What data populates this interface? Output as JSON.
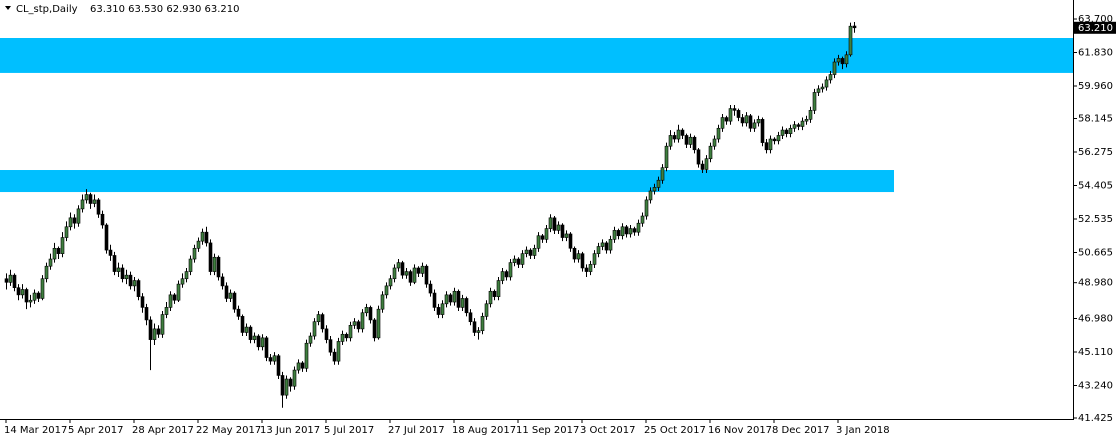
{
  "chart_data": {
    "type": "candlestick",
    "header": {
      "symbol": "CL_stp,Daily",
      "ohlc_text": "63.310 63.530 62.930 63.210"
    },
    "ylim": [
      41.425,
      64.65
    ],
    "yticks": [
      {
        "value": 63.7,
        "label": "63.700"
      },
      {
        "value": 61.83,
        "label": "61.830"
      },
      {
        "value": 59.96,
        "label": "59.960"
      },
      {
        "value": 58.145,
        "label": "58.145"
      },
      {
        "value": 56.275,
        "label": "56.275"
      },
      {
        "value": 54.405,
        "label": "54.405"
      },
      {
        "value": 52.535,
        "label": "52.535"
      },
      {
        "value": 50.665,
        "label": "50.665"
      },
      {
        "value": 48.98,
        "label": "48.980"
      },
      {
        "value": 46.98,
        "label": "46.980"
      },
      {
        "value": 45.11,
        "label": "45.110"
      },
      {
        "value": 43.24,
        "label": "43.240"
      },
      {
        "value": 41.425,
        "label": "41.425"
      }
    ],
    "x_labels": [
      "14 Mar 2017",
      "5 Apr 2017",
      "28 Apr 2017",
      "22 May 2017",
      "13 Jun 2017",
      "5 Jul 2017",
      "27 Jul 2017",
      "18 Aug 2017",
      "11 Sep 2017",
      "3 Oct 2017",
      "25 Oct 2017",
      "16 Nov 2017",
      "8 Dec 2017",
      "3 Jan 2018"
    ],
    "last_price": {
      "value": 63.21,
      "label": "63.210"
    },
    "up_color": "#3f7f3f",
    "down_color": "#000000",
    "zone_color": "#00bfff",
    "zones": [
      {
        "low": 60.69,
        "high": 62.64
      },
      {
        "low": 54.04,
        "high": 55.27,
        "x_end_index": 222
      }
    ],
    "candles": [
      [
        49.2,
        49.5,
        48.6,
        49.0
      ],
      [
        49.0,
        49.7,
        48.8,
        49.4
      ],
      [
        49.4,
        49.5,
        48.5,
        48.7
      ],
      [
        48.7,
        48.9,
        48.0,
        48.3
      ],
      [
        48.3,
        48.9,
        48.1,
        48.6
      ],
      [
        48.6,
        48.7,
        47.5,
        47.9
      ],
      [
        47.9,
        48.3,
        47.6,
        48.0
      ],
      [
        48.0,
        48.6,
        47.8,
        48.4
      ],
      [
        48.4,
        48.5,
        47.9,
        48.1
      ],
      [
        48.1,
        49.4,
        48.0,
        49.2
      ],
      [
        49.2,
        50.1,
        49.0,
        49.9
      ],
      [
        49.9,
        50.6,
        49.7,
        50.3
      ],
      [
        50.3,
        51.2,
        50.1,
        50.9
      ],
      [
        50.9,
        51.0,
        50.3,
        50.6
      ],
      [
        50.6,
        51.8,
        50.4,
        51.5
      ],
      [
        51.5,
        52.4,
        51.3,
        52.1
      ],
      [
        52.1,
        52.9,
        51.9,
        52.6
      ],
      [
        52.6,
        52.8,
        52.0,
        52.3
      ],
      [
        52.3,
        53.3,
        52.1,
        53.1
      ],
      [
        53.1,
        53.9,
        52.9,
        53.6
      ],
      [
        53.6,
        54.2,
        53.4,
        53.9
      ],
      [
        53.9,
        54.0,
        53.1,
        53.4
      ],
      [
        53.4,
        53.9,
        53.2,
        53.6
      ],
      [
        53.6,
        53.7,
        52.6,
        52.8
      ],
      [
        52.8,
        53.0,
        52.0,
        52.2
      ],
      [
        52.2,
        52.3,
        50.6,
        50.8
      ],
      [
        50.8,
        51.1,
        50.2,
        50.5
      ],
      [
        50.5,
        50.7,
        49.4,
        49.6
      ],
      [
        49.6,
        50.1,
        49.3,
        49.8
      ],
      [
        49.8,
        50.0,
        49.0,
        49.2
      ],
      [
        49.2,
        49.7,
        48.9,
        49.4
      ],
      [
        49.4,
        49.6,
        48.6,
        48.8
      ],
      [
        48.8,
        49.3,
        48.5,
        49.1
      ],
      [
        49.1,
        49.2,
        48.0,
        48.2
      ],
      [
        48.2,
        48.4,
        47.3,
        47.6
      ],
      [
        47.6,
        47.8,
        46.6,
        46.9
      ],
      [
        46.9,
        47.1,
        44.1,
        45.8
      ],
      [
        45.8,
        46.7,
        45.5,
        46.4
      ],
      [
        46.4,
        46.6,
        45.9,
        46.1
      ],
      [
        46.1,
        47.4,
        45.9,
        47.2
      ],
      [
        47.2,
        47.9,
        47.0,
        47.6
      ],
      [
        47.6,
        48.5,
        47.4,
        48.3
      ],
      [
        48.3,
        48.4,
        47.8,
        48.0
      ],
      [
        48.0,
        49.1,
        47.9,
        48.9
      ],
      [
        48.9,
        49.5,
        48.7,
        49.2
      ],
      [
        49.2,
        49.8,
        49.0,
        49.6
      ],
      [
        49.6,
        50.5,
        49.4,
        50.3
      ],
      [
        50.3,
        51.1,
        50.1,
        50.9
      ],
      [
        50.9,
        51.5,
        50.7,
        51.3
      ],
      [
        51.3,
        52.0,
        51.1,
        51.8
      ],
      [
        51.8,
        52.1,
        51.0,
        51.2
      ],
      [
        51.2,
        51.4,
        49.4,
        49.6
      ],
      [
        49.6,
        50.6,
        49.4,
        50.4
      ],
      [
        50.4,
        50.5,
        49.1,
        49.3
      ],
      [
        49.3,
        49.5,
        48.6,
        48.8
      ],
      [
        48.8,
        49.0,
        47.9,
        48.1
      ],
      [
        48.1,
        48.6,
        47.9,
        48.4
      ],
      [
        48.4,
        48.5,
        47.3,
        47.5
      ],
      [
        47.5,
        47.7,
        46.9,
        47.1
      ],
      [
        47.1,
        47.2,
        46.0,
        46.2
      ],
      [
        46.2,
        46.7,
        46.0,
        46.5
      ],
      [
        46.5,
        46.6,
        45.6,
        45.8
      ],
      [
        45.8,
        46.2,
        45.6,
        46.0
      ],
      [
        46.0,
        46.1,
        45.2,
        45.4
      ],
      [
        45.4,
        46.1,
        45.2,
        45.9
      ],
      [
        45.9,
        46.0,
        44.6,
        44.8
      ],
      [
        44.8,
        45.0,
        44.4,
        44.6
      ],
      [
        44.6,
        45.1,
        44.4,
        44.9
      ],
      [
        44.9,
        45.0,
        43.6,
        43.8
      ],
      [
        43.8,
        44.0,
        42.0,
        42.7
      ],
      [
        42.7,
        43.8,
        42.5,
        43.6
      ],
      [
        43.6,
        43.7,
        42.9,
        43.2
      ],
      [
        43.2,
        44.3,
        43.0,
        44.1
      ],
      [
        44.1,
        44.7,
        43.9,
        44.5
      ],
      [
        44.5,
        44.6,
        44.0,
        44.2
      ],
      [
        44.2,
        45.8,
        44.0,
        45.6
      ],
      [
        45.6,
        46.2,
        45.4,
        46.0
      ],
      [
        46.0,
        47.0,
        45.8,
        46.8
      ],
      [
        46.8,
        47.4,
        46.6,
        47.2
      ],
      [
        47.2,
        47.3,
        46.2,
        46.4
      ],
      [
        46.4,
        46.6,
        45.6,
        45.8
      ],
      [
        45.8,
        46.0,
        44.9,
        45.1
      ],
      [
        45.1,
        45.3,
        44.4,
        44.6
      ],
      [
        44.6,
        45.9,
        44.4,
        45.7
      ],
      [
        45.7,
        46.3,
        45.5,
        46.1
      ],
      [
        46.1,
        46.2,
        45.7,
        45.9
      ],
      [
        45.9,
        46.8,
        45.7,
        46.6
      ],
      [
        46.6,
        47.0,
        46.4,
        46.8
      ],
      [
        46.8,
        46.9,
        46.2,
        46.4
      ],
      [
        46.4,
        47.5,
        46.2,
        47.3
      ],
      [
        47.3,
        47.8,
        47.1,
        47.6
      ],
      [
        47.6,
        47.7,
        46.7,
        46.9
      ],
      [
        46.9,
        47.0,
        45.7,
        45.9
      ],
      [
        45.9,
        47.7,
        45.8,
        47.5
      ],
      [
        47.5,
        48.5,
        47.3,
        48.3
      ],
      [
        48.3,
        49.0,
        48.1,
        48.8
      ],
      [
        48.8,
        49.4,
        48.6,
        49.2
      ],
      [
        49.2,
        50.0,
        49.0,
        49.8
      ],
      [
        49.8,
        50.3,
        49.6,
        50.1
      ],
      [
        50.1,
        50.2,
        49.2,
        49.4
      ],
      [
        49.4,
        49.8,
        49.2,
        49.6
      ],
      [
        49.6,
        49.7,
        48.8,
        49.0
      ],
      [
        49.0,
        50.0,
        48.9,
        49.8
      ],
      [
        49.8,
        49.9,
        49.3,
        49.5
      ],
      [
        49.5,
        50.1,
        49.3,
        49.9
      ],
      [
        49.9,
        50.0,
        48.7,
        48.9
      ],
      [
        48.9,
        49.1,
        48.2,
        48.4
      ],
      [
        48.4,
        48.6,
        47.4,
        47.6
      ],
      [
        47.6,
        47.8,
        47.0,
        47.2
      ],
      [
        47.2,
        48.0,
        47.0,
        47.8
      ],
      [
        47.8,
        48.5,
        47.6,
        48.3
      ],
      [
        48.3,
        48.4,
        47.7,
        47.9
      ],
      [
        47.9,
        48.7,
        47.7,
        48.5
      ],
      [
        48.5,
        48.6,
        47.4,
        47.6
      ],
      [
        47.6,
        48.3,
        47.4,
        48.1
      ],
      [
        48.1,
        48.2,
        47.1,
        47.3
      ],
      [
        47.3,
        47.5,
        46.6,
        46.8
      ],
      [
        46.8,
        47.0,
        46.0,
        46.2
      ],
      [
        46.2,
        46.5,
        45.8,
        46.3
      ],
      [
        46.3,
        47.3,
        46.1,
        47.1
      ],
      [
        47.1,
        48.0,
        46.9,
        47.8
      ],
      [
        47.8,
        48.7,
        47.6,
        48.5
      ],
      [
        48.5,
        48.6,
        48.0,
        48.2
      ],
      [
        48.2,
        49.3,
        48.0,
        49.1
      ],
      [
        49.1,
        49.8,
        48.9,
        49.6
      ],
      [
        49.6,
        49.7,
        49.1,
        49.3
      ],
      [
        49.3,
        50.3,
        49.1,
        50.1
      ],
      [
        50.1,
        50.5,
        49.9,
        50.3
      ],
      [
        50.3,
        50.4,
        49.8,
        50.0
      ],
      [
        50.0,
        50.8,
        49.8,
        50.6
      ],
      [
        50.6,
        51.0,
        50.4,
        50.8
      ],
      [
        50.8,
        50.9,
        50.3,
        50.5
      ],
      [
        50.5,
        51.1,
        50.3,
        50.9
      ],
      [
        50.9,
        51.8,
        50.7,
        51.6
      ],
      [
        51.6,
        51.7,
        51.2,
        51.4
      ],
      [
        51.4,
        52.2,
        51.2,
        52.0
      ],
      [
        52.0,
        52.8,
        51.8,
        52.6
      ],
      [
        52.6,
        52.7,
        51.7,
        51.9
      ],
      [
        51.9,
        52.4,
        51.7,
        52.2
      ],
      [
        52.2,
        52.3,
        51.3,
        51.5
      ],
      [
        51.5,
        51.9,
        51.3,
        51.7
      ],
      [
        51.7,
        51.8,
        50.7,
        50.9
      ],
      [
        50.9,
        51.0,
        50.1,
        50.3
      ],
      [
        50.3,
        50.8,
        50.1,
        50.6
      ],
      [
        50.6,
        50.7,
        49.6,
        49.8
      ],
      [
        49.8,
        50.0,
        49.3,
        49.6
      ],
      [
        49.6,
        50.2,
        49.4,
        50.0
      ],
      [
        50.0,
        50.8,
        49.8,
        50.6
      ],
      [
        50.6,
        51.2,
        50.4,
        51.0
      ],
      [
        51.0,
        51.4,
        50.8,
        51.2
      ],
      [
        51.2,
        51.3,
        50.6,
        50.8
      ],
      [
        50.8,
        51.6,
        50.6,
        51.4
      ],
      [
        51.4,
        52.1,
        51.2,
        51.9
      ],
      [
        51.9,
        52.0,
        51.4,
        51.6
      ],
      [
        51.6,
        52.3,
        51.4,
        52.1
      ],
      [
        52.1,
        52.2,
        51.5,
        51.7
      ],
      [
        51.7,
        52.2,
        51.5,
        52.0
      ],
      [
        52.0,
        52.1,
        51.6,
        51.8
      ],
      [
        51.8,
        52.5,
        51.6,
        52.3
      ],
      [
        52.3,
        52.9,
        52.1,
        52.7
      ],
      [
        52.7,
        53.8,
        52.5,
        53.6
      ],
      [
        53.6,
        54.3,
        53.4,
        54.1
      ],
      [
        54.1,
        54.5,
        53.9,
        54.3
      ],
      [
        54.3,
        54.9,
        54.1,
        54.7
      ],
      [
        54.7,
        55.6,
        54.5,
        55.4
      ],
      [
        55.4,
        56.8,
        55.2,
        56.6
      ],
      [
        56.6,
        57.5,
        56.4,
        57.2
      ],
      [
        57.2,
        57.4,
        56.8,
        57.0
      ],
      [
        57.0,
        57.8,
        56.8,
        57.5
      ],
      [
        57.5,
        57.6,
        57.0,
        57.2
      ],
      [
        57.2,
        57.3,
        56.5,
        56.7
      ],
      [
        56.7,
        57.3,
        56.5,
        57.1
      ],
      [
        57.1,
        57.2,
        56.2,
        56.4
      ],
      [
        56.4,
        56.5,
        55.4,
        55.6
      ],
      [
        55.6,
        55.8,
        55.1,
        55.3
      ],
      [
        55.3,
        56.1,
        55.1,
        55.9
      ],
      [
        55.9,
        56.8,
        55.7,
        56.6
      ],
      [
        56.6,
        57.2,
        56.4,
        57.0
      ],
      [
        57.0,
        57.8,
        56.8,
        57.6
      ],
      [
        57.6,
        58.4,
        57.4,
        58.2
      ],
      [
        58.2,
        58.3,
        57.8,
        58.0
      ],
      [
        58.0,
        58.9,
        57.8,
        58.7
      ],
      [
        58.7,
        58.9,
        58.3,
        58.6
      ],
      [
        58.6,
        58.7,
        58.0,
        58.2
      ],
      [
        58.2,
        58.4,
        57.7,
        57.9
      ],
      [
        57.9,
        58.5,
        57.7,
        58.3
      ],
      [
        58.3,
        58.4,
        57.4,
        57.6
      ],
      [
        57.6,
        58.1,
        57.4,
        57.9
      ],
      [
        57.9,
        58.3,
        57.7,
        58.1
      ],
      [
        58.1,
        58.2,
        56.6,
        56.8
      ],
      [
        56.8,
        57.0,
        56.2,
        56.4
      ],
      [
        56.4,
        57.2,
        56.2,
        57.0
      ],
      [
        57.0,
        57.1,
        56.7,
        56.9
      ],
      [
        56.9,
        57.4,
        56.7,
        57.2
      ],
      [
        57.2,
        57.7,
        57.0,
        57.5
      ],
      [
        57.5,
        57.6,
        57.1,
        57.3
      ],
      [
        57.3,
        57.8,
        57.1,
        57.6
      ],
      [
        57.6,
        58.0,
        57.4,
        57.8
      ],
      [
        57.8,
        57.9,
        57.5,
        57.7
      ],
      [
        57.7,
        58.2,
        57.5,
        58.0
      ],
      [
        58.0,
        58.3,
        57.8,
        58.1
      ],
      [
        58.1,
        58.8,
        57.9,
        58.6
      ],
      [
        58.6,
        59.8,
        58.4,
        59.6
      ],
      [
        59.6,
        60.0,
        59.4,
        59.8
      ],
      [
        59.8,
        60.1,
        59.6,
        59.9
      ],
      [
        59.9,
        60.5,
        59.7,
        60.3
      ],
      [
        60.3,
        60.8,
        60.1,
        60.6
      ],
      [
        60.6,
        61.5,
        60.4,
        61.3
      ],
      [
        61.3,
        61.7,
        61.1,
        61.5
      ],
      [
        61.5,
        61.6,
        60.9,
        61.2
      ],
      [
        61.2,
        61.9,
        61.0,
        61.7
      ],
      [
        61.7,
        63.5,
        61.6,
        63.3
      ],
      [
        63.31,
        63.53,
        62.93,
        63.21
      ]
    ]
  }
}
